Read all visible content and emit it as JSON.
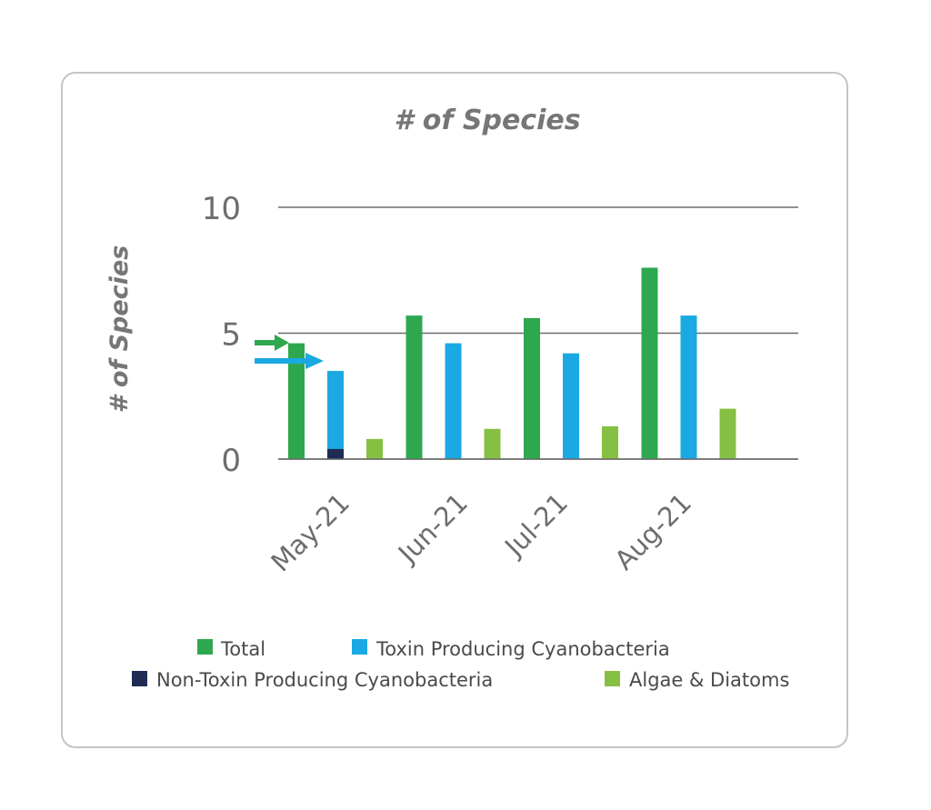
{
  "chart_data": {
    "type": "bar",
    "title": "# of Species",
    "ylabel": "# of Species",
    "xlabel": "",
    "ylim": [
      0,
      10
    ],
    "yticks": [
      0,
      5,
      10
    ],
    "grid": true,
    "legend_position": "bottom",
    "categories": [
      "May-21",
      "Jun-21",
      "Jul-21",
      "Aug-21"
    ],
    "series": [
      {
        "name": "Total",
        "color": "#2ea84f",
        "values": [
          4.6,
          5.7,
          5.6,
          7.6
        ]
      },
      {
        "name": "Toxin Producing Cyanobacteria",
        "color": "#1aa9e2",
        "values": [
          3.5,
          4.6,
          4.2,
          5.7
        ]
      },
      {
        "name": "Non-Toxin Producing Cyanobacteria",
        "color": "#1f2a55",
        "values": [
          0.4,
          0,
          0,
          0
        ]
      },
      {
        "name": "Algae & Diatoms",
        "color": "#86c043",
        "values": [
          0.8,
          1.2,
          1.3,
          2.0
        ]
      }
    ],
    "stacked_pairs": [
      {
        "bottom": "Non-Toxin Producing Cyanobacteria",
        "top": "Toxin Producing Cyanobacteria"
      }
    ],
    "annotations": [
      {
        "type": "arrow",
        "color": "#2ea84f",
        "points_to": "Total",
        "category": "May-21"
      },
      {
        "type": "arrow",
        "color": "#1aa9e2",
        "points_to": "Toxin Producing Cyanobacteria",
        "category": "May-21"
      }
    ]
  }
}
